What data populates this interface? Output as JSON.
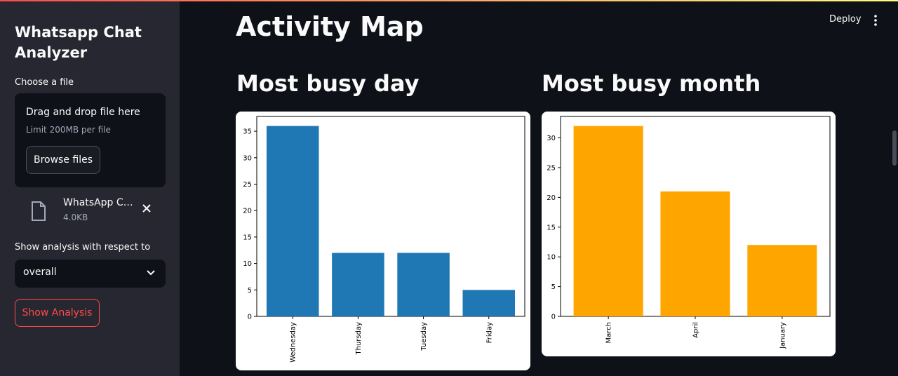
{
  "sidebar": {
    "app_title": "Whatsapp Chat Analyzer",
    "file_label": "Choose a file",
    "dropzone_title": "Drag and drop file here",
    "dropzone_limit": "Limit 200MB per file",
    "browse_label": "Browse files",
    "file_name": "WhatsApp Chat with...",
    "file_size": "4.0KB",
    "select_label": "Show analysis with respect to",
    "select_value": "overall",
    "show_button": "Show Analysis"
  },
  "header": {
    "deploy_label": "Deploy"
  },
  "main": {
    "page_title": "Activity Map",
    "left_title": "Most busy day",
    "right_title": "Most busy month"
  },
  "colors": {
    "accent": "#ff4b4b",
    "day_bars": "#1f77b4",
    "month_bars": "#ffa500"
  },
  "chart_data": [
    {
      "type": "bar",
      "categories": [
        "Wednesday",
        "Thursday",
        "Tuesday",
        "Friday"
      ],
      "values": [
        36,
        12,
        12,
        5
      ],
      "yticks": [
        0,
        5,
        10,
        15,
        20,
        25,
        30,
        35
      ],
      "ylim": [
        0,
        37.8
      ],
      "color": "#1f77b4"
    },
    {
      "type": "bar",
      "categories": [
        "March",
        "April",
        "January"
      ],
      "values": [
        32,
        21,
        12
      ],
      "yticks": [
        0,
        5,
        10,
        15,
        20,
        25,
        30
      ],
      "ylim": [
        0,
        33.6
      ],
      "color": "#ffa500"
    }
  ]
}
